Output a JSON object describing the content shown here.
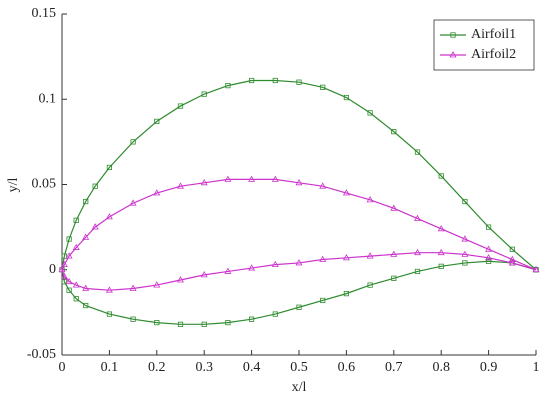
{
  "chart_data": {
    "type": "line",
    "xlabel": "x/l",
    "ylabel": "y/l",
    "xlim": [
      0,
      1
    ],
    "ylim": [
      -0.05,
      0.15
    ],
    "xticks": [
      0,
      0.1,
      0.2,
      0.3,
      0.4,
      0.5,
      0.6,
      0.7,
      0.8,
      0.9,
      1
    ],
    "yticks": [
      -0.05,
      0,
      0.05,
      0.1,
      0.15
    ],
    "legend": "upper right",
    "series": [
      {
        "name": "Airfoil1",
        "color": "#2e8b2e",
        "marker": "square",
        "x": [
          1,
          0.95,
          0.9,
          0.85,
          0.8,
          0.75,
          0.7,
          0.65,
          0.6,
          0.55,
          0.5,
          0.45,
          0.4,
          0.35,
          0.3,
          0.25,
          0.2,
          0.15,
          0.1,
          0.07,
          0.05,
          0.03,
          0.015,
          0.005,
          0,
          0.005,
          0.015,
          0.03,
          0.05,
          0.1,
          0.15,
          0.2,
          0.25,
          0.3,
          0.35,
          0.4,
          0.45,
          0.5,
          0.55,
          0.6,
          0.65,
          0.7,
          0.75,
          0.8,
          0.85,
          0.9,
          0.95,
          1
        ],
        "values": [
          0,
          0.012,
          0.025,
          0.04,
          0.055,
          0.069,
          0.081,
          0.092,
          0.101,
          0.107,
          0.11,
          0.111,
          0.111,
          0.108,
          0.103,
          0.096,
          0.087,
          0.075,
          0.06,
          0.049,
          0.04,
          0.029,
          0.018,
          0.008,
          0,
          -0.007,
          -0.012,
          -0.017,
          -0.021,
          -0.026,
          -0.029,
          -0.031,
          -0.032,
          -0.032,
          -0.031,
          -0.029,
          -0.026,
          -0.022,
          -0.018,
          -0.014,
          -0.009,
          -0.005,
          -0.001,
          0.002,
          0.004,
          0.005,
          0.004,
          0
        ]
      },
      {
        "name": "Airfoil2",
        "color": "#cc33cc",
        "marker": "triangle",
        "x": [
          1,
          0.95,
          0.9,
          0.85,
          0.8,
          0.75,
          0.7,
          0.65,
          0.6,
          0.55,
          0.5,
          0.45,
          0.4,
          0.35,
          0.3,
          0.25,
          0.2,
          0.15,
          0.1,
          0.07,
          0.05,
          0.03,
          0.015,
          0.005,
          0,
          0.005,
          0.015,
          0.03,
          0.05,
          0.1,
          0.15,
          0.2,
          0.25,
          0.3,
          0.35,
          0.4,
          0.45,
          0.5,
          0.55,
          0.6,
          0.65,
          0.7,
          0.75,
          0.8,
          0.85,
          0.9,
          0.95,
          1
        ],
        "values": [
          0,
          0.006,
          0.012,
          0.018,
          0.024,
          0.03,
          0.036,
          0.041,
          0.045,
          0.049,
          0.051,
          0.053,
          0.053,
          0.053,
          0.051,
          0.049,
          0.045,
          0.039,
          0.031,
          0.025,
          0.019,
          0.013,
          0.008,
          0.003,
          0,
          -0.004,
          -0.007,
          -0.009,
          -0.011,
          -0.012,
          -0.011,
          -0.009,
          -0.006,
          -0.003,
          -0.001,
          0.001,
          0.003,
          0.004,
          0.006,
          0.007,
          0.008,
          0.009,
          0.01,
          0.01,
          0.009,
          0.007,
          0.004,
          0
        ]
      }
    ]
  }
}
